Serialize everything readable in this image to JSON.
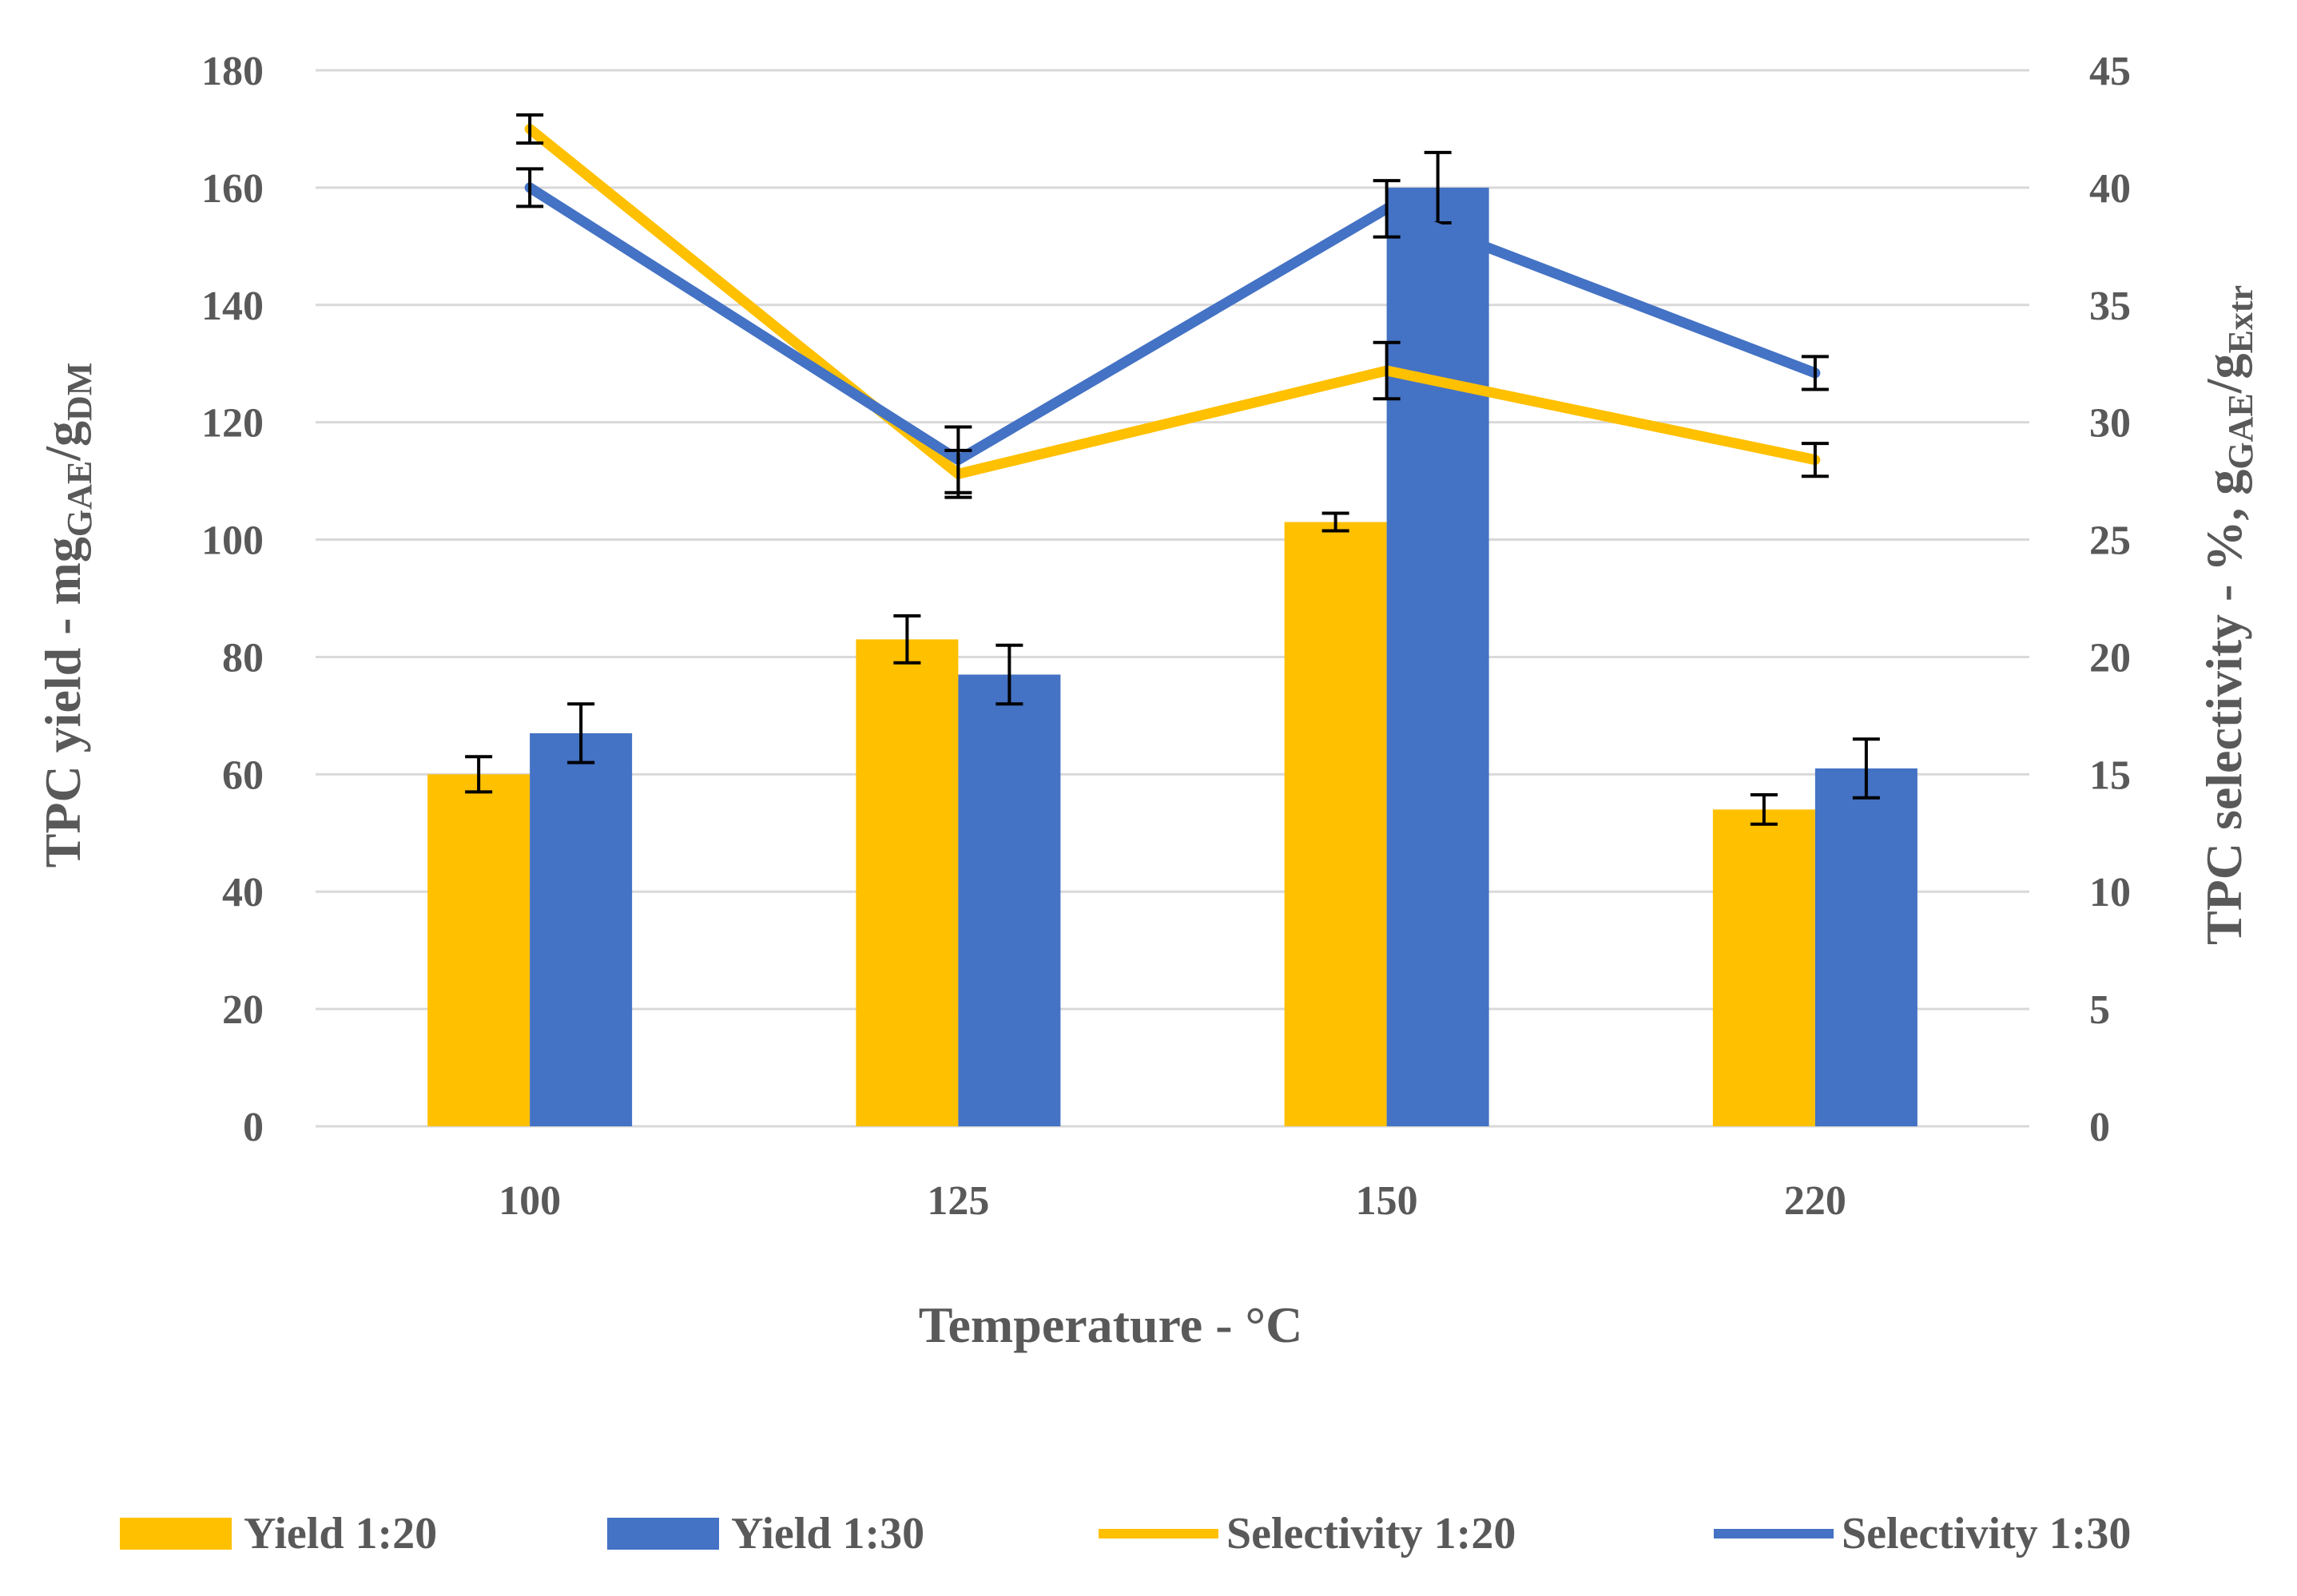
{
  "chart_data": {
    "type": "bar+line",
    "title": "",
    "categories": [
      "100",
      "125",
      "150",
      "220"
    ],
    "xlabel": "Temperature - °C",
    "ylabel_left": {
      "main": "TPC yield - mg",
      "sub1": "GAE",
      "mid": "/g",
      "sub2": "DM"
    },
    "ylabel_right": {
      "main": "TPC selectivity - %, g",
      "sub1": "GAE",
      "mid": "/g",
      "sub2": "Extr"
    },
    "y_left": {
      "min": 0,
      "max": 180,
      "step": 20,
      "ticks": [
        "0",
        "20",
        "40",
        "60",
        "80",
        "100",
        "120",
        "140",
        "160",
        "180"
      ]
    },
    "y_right": {
      "min": 0,
      "max": 45,
      "step": 5,
      "ticks": [
        "0",
        "5",
        "10",
        "15",
        "20",
        "25",
        "30",
        "35",
        "40",
        "45"
      ]
    },
    "grid": "horizontal",
    "legend_position": "bottom",
    "bar_series": [
      {
        "name": "Yield 1:20",
        "color": "#FFC000",
        "values": [
          60,
          83,
          103,
          54
        ],
        "errors": [
          3,
          4,
          1.5,
          2.5
        ]
      },
      {
        "name": "Yield 1:30",
        "color": "#4472C4",
        "values": [
          67,
          77,
          160,
          61
        ],
        "errors": [
          5,
          5,
          6,
          5
        ]
      }
    ],
    "line_series": [
      {
        "name": "Selectivity 1:20",
        "color": "#FFC000",
        "axis": "right",
        "values": [
          42.5,
          27.8,
          32.2,
          28.4
        ],
        "errors": [
          0.6,
          1.0,
          1.2,
          0.7
        ]
      },
      {
        "name": "Selectivity 1:30",
        "color": "#4472C4",
        "axis": "right",
        "values": [
          40.0,
          28.4,
          39.1,
          32.1
        ],
        "errors": [
          0.8,
          1.4,
          1.2,
          0.7
        ]
      }
    ],
    "legend": [
      "Yield 1:20",
      "Yield 1:30",
      "Selectivity 1:20",
      "Selectivity 1:30"
    ]
  }
}
